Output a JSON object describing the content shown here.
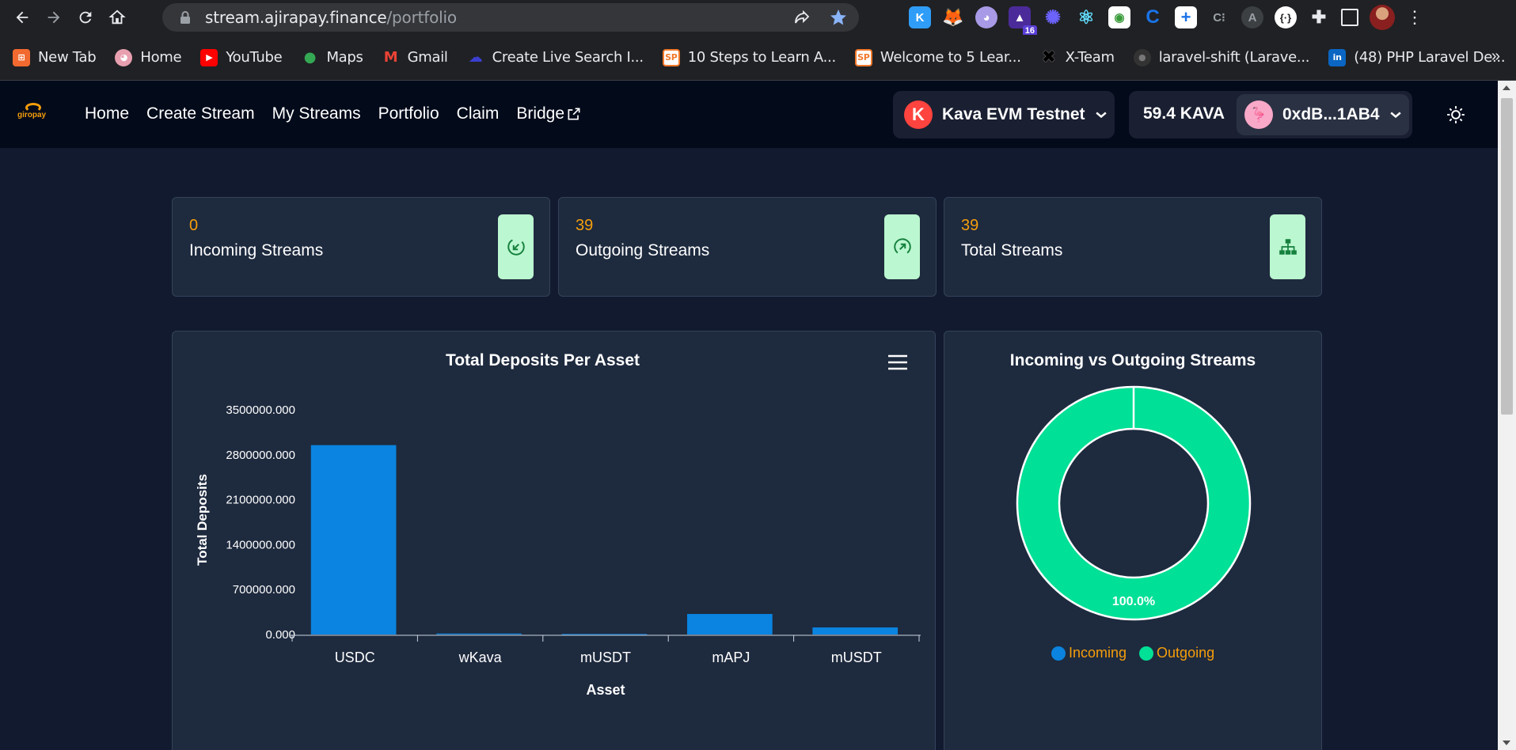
{
  "browser": {
    "url_host": "stream.ajirapay.finance",
    "url_path": "/portfolio",
    "extension_badge": "16",
    "bookmarks": [
      {
        "label": "New Tab",
        "color": "#f26a2f",
        "glyph": "⊞"
      },
      {
        "label": "Home",
        "color": "#e8a0b0",
        "glyph": "◕"
      },
      {
        "label": "YouTube",
        "color": "#ff0000",
        "glyph": "▶"
      },
      {
        "label": "Maps",
        "color": "#34a853",
        "glyph": "●"
      },
      {
        "label": "Gmail",
        "color": "#ea4335",
        "glyph": "M"
      },
      {
        "label": "Create Live Search I...",
        "color": "#3b3fd0",
        "glyph": "☁"
      },
      {
        "label": "10 Steps to Learn A...",
        "color": "#f2792b",
        "glyph": "SP"
      },
      {
        "label": "Welcome to 5 Lear...",
        "color": "#f2792b",
        "glyph": "SP"
      },
      {
        "label": "X-Team",
        "color": "#111111",
        "glyph": "✖"
      },
      {
        "label": "laravel-shift (Larave...",
        "color": "#333333",
        "glyph": "●"
      },
      {
        "label": "(48) PHP Laravel De...",
        "color": "#0a66c2",
        "glyph": "in"
      }
    ],
    "more": "»"
  },
  "app": {
    "logo_text": "giropay",
    "nav": [
      "Home",
      "Create Stream",
      "My Streams",
      "Portfolio",
      "Claim",
      "Bridge"
    ],
    "network": {
      "logo": "K",
      "name": "Kava EVM Testnet"
    },
    "balance": "59.4 KAVA",
    "address": "0xdB...1AB4"
  },
  "stats": [
    {
      "value": "0",
      "label": "Incoming Streams",
      "icon": "incoming-arrow-icon"
    },
    {
      "value": "39",
      "label": "Outgoing Streams",
      "icon": "outgoing-arrow-icon"
    },
    {
      "value": "39",
      "label": "Total Streams",
      "icon": "sitemap-icon"
    }
  ],
  "bar_chart_title": "Total Deposits Per Asset",
  "pie_chart_title": "Incoming vs Outgoing Streams",
  "pie_label": "100.0%",
  "legend": [
    "Incoming",
    "Outgoing"
  ],
  "colors": {
    "bar": "#0a84e0",
    "incoming": "#0a84e0",
    "outgoing": "#00e096",
    "accent": "#f59e0b"
  },
  "chart_data": [
    {
      "type": "bar",
      "title": "Total Deposits Per Asset",
      "xlabel": "Asset",
      "ylabel": "Total Deposits",
      "categories": [
        "USDC",
        "wKava",
        "mUSDT",
        "mAPJ",
        "mUSDT"
      ],
      "values": [
        2950000,
        15000,
        8000,
        320000,
        110000
      ],
      "ylim": [
        0,
        3500000
      ],
      "yticks": [
        "0.000",
        "700000.000",
        "1400000.000",
        "2100000.000",
        "2800000.000",
        "3500000.000"
      ],
      "ytick_values": [
        0,
        700000,
        1400000,
        2100000,
        2800000,
        3500000
      ],
      "grid": false
    },
    {
      "type": "pie",
      "title": "Incoming vs Outgoing Streams",
      "labels": [
        "Incoming",
        "Outgoing"
      ],
      "values": [
        0,
        39
      ],
      "percent_labels": [
        "",
        "100.0%"
      ],
      "legend_position": "bottom"
    }
  ]
}
